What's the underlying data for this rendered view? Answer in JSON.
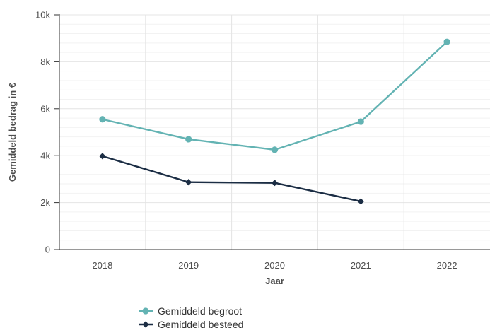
{
  "chart_data": {
    "type": "line",
    "categories": [
      "2018",
      "2019",
      "2020",
      "2021",
      "2022"
    ],
    "xlabel": "Jaar",
    "ylabel": "Gemiddeld bedrag in €",
    "ylim": [
      0,
      10000
    ],
    "yticks": [
      0,
      2000,
      4000,
      6000,
      8000,
      10000
    ],
    "ytick_labels": [
      "0",
      "2k",
      "4k",
      "6k",
      "8k",
      "10k"
    ],
    "grid": true,
    "legend_position": "bottom",
    "series": [
      {
        "name": "Gemiddeld begroot",
        "color": "#63b3b3",
        "marker": "circle",
        "values": [
          5550,
          4700,
          4250,
          5450,
          8850
        ]
      },
      {
        "name": "Gemiddeld besteed",
        "color": "#1b2d44",
        "marker": "diamond",
        "values": [
          3980,
          2870,
          2840,
          2050,
          null
        ]
      }
    ]
  }
}
